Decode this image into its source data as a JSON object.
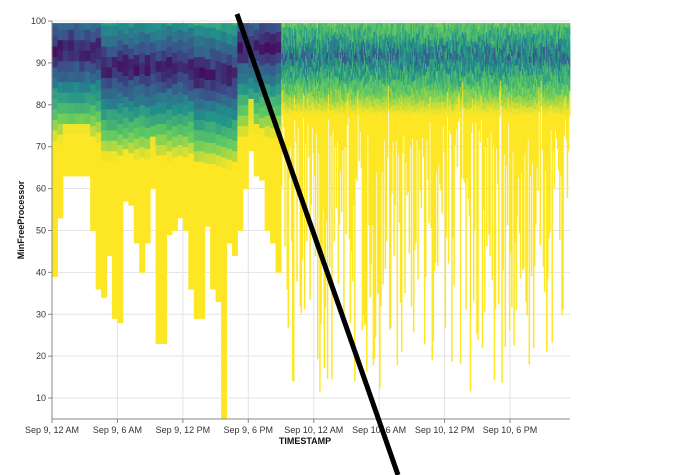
{
  "chart_data": {
    "type": "heatmap",
    "title": "",
    "xlabel": "TIMESTAMP",
    "ylabel": "MinFreeProcessor",
    "x_tick_labels": [
      "Sep 9, 12 AM",
      "Sep 9, 6 AM",
      "Sep 9, 12 PM",
      "Sep 9, 6 PM",
      "Sep 10, 12 AM",
      "Sep 10, 6 AM",
      "Sep 10, 12 PM",
      "Sep 10, 6 PM"
    ],
    "x_tick_hours": [
      0,
      6,
      12,
      18,
      24,
      30,
      36,
      42
    ],
    "y_tick_labels": [
      "10",
      "20",
      "30",
      "40",
      "50",
      "60",
      "70",
      "80",
      "90",
      "100"
    ],
    "y_tick_values": [
      10,
      20,
      30,
      40,
      50,
      60,
      70,
      80,
      90,
      100
    ],
    "xlim_hours": [
      0,
      47.5
    ],
    "ylim": [
      5,
      100
    ],
    "grid": true,
    "colormap": [
      "#fde725",
      "#5ec962",
      "#21918c",
      "#3b528b",
      "#440154"
    ],
    "divider_color": "#000000",
    "coarse_section": {
      "x_range_hours": [
        0,
        21
      ],
      "bin_hours": 0.5,
      "column_min_values": [
        39,
        53,
        63,
        63,
        63,
        63,
        63,
        50,
        36,
        34,
        44,
        29,
        28,
        57,
        56,
        47,
        40,
        47,
        60,
        23,
        23,
        49,
        50,
        53,
        50,
        36,
        29,
        29,
        51,
        36,
        33,
        5,
        47,
        44,
        50,
        60,
        69,
        63,
        62,
        50,
        47,
        40
      ]
    },
    "fine_section": {
      "x_range_hours": [
        21,
        47.5
      ],
      "bin_hours": 0.1,
      "notes": "dense noisy columns with minimum values between about 11 and 80"
    }
  }
}
